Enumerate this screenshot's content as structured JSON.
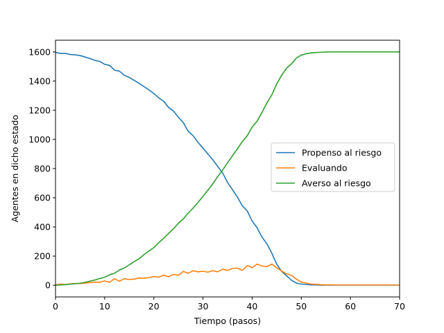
{
  "chart_data": {
    "type": "line",
    "title": "",
    "xlabel": "Tiempo (pasos)",
    "ylabel": "Agentes en dicho estado",
    "xlim": [
      0,
      70
    ],
    "ylim": [
      -80,
      1680
    ],
    "xticks": [
      0,
      10,
      20,
      30,
      40,
      50,
      60,
      70
    ],
    "yticks": [
      0,
      200,
      400,
      600,
      800,
      1000,
      1200,
      1400,
      1600
    ],
    "grid": false,
    "legend_position": "center-right",
    "x": [
      0,
      1,
      2,
      3,
      4,
      5,
      6,
      7,
      8,
      9,
      10,
      11,
      12,
      13,
      14,
      15,
      16,
      17,
      18,
      19,
      20,
      21,
      22,
      23,
      24,
      25,
      26,
      27,
      28,
      29,
      30,
      31,
      32,
      33,
      34,
      35,
      36,
      37,
      38,
      39,
      40,
      41,
      42,
      43,
      44,
      45,
      46,
      47,
      48,
      49,
      50,
      51,
      52,
      53,
      54,
      55,
      56,
      57,
      58,
      59,
      60,
      61,
      62,
      63,
      64,
      65,
      66,
      67,
      68,
      69,
      70
    ],
    "series": [
      {
        "name": "Propenso al riesgo",
        "color": "#1f77b4",
        "values": [
          1596,
          1590,
          1590,
          1582,
          1580,
          1575,
          1565,
          1555,
          1542,
          1535,
          1515,
          1508,
          1475,
          1468,
          1440,
          1425,
          1405,
          1385,
          1362,
          1340,
          1315,
          1285,
          1262,
          1220,
          1195,
          1152,
          1115,
          1055,
          1025,
          980,
          940,
          900,
          860,
          815,
          770,
          705,
          655,
          605,
          545,
          510,
          440,
          395,
          330,
          285,
          220,
          145,
          95,
          65,
          35,
          15,
          8,
          5,
          3,
          2,
          1,
          1,
          1,
          1,
          1,
          1,
          1,
          1,
          1,
          1,
          1,
          1,
          1,
          1,
          1,
          1,
          1
        ]
      },
      {
        "name": "Evaluando",
        "color": "#ff7f0e",
        "values": [
          2,
          8,
          5,
          10,
          12,
          12,
          15,
          18,
          22,
          20,
          30,
          20,
          45,
          28,
          45,
          40,
          42,
          50,
          48,
          52,
          60,
          55,
          70,
          58,
          75,
          68,
          95,
          82,
          100,
          92,
          96,
          90,
          100,
          92,
          110,
          102,
          115,
          118,
          102,
          135,
          120,
          145,
          132,
          128,
          145,
          120,
          98,
          78,
          68,
          42,
          22,
          15,
          8,
          6,
          4,
          3,
          3,
          2,
          2,
          2,
          2,
          2,
          2,
          2,
          2,
          2,
          2,
          2,
          2,
          2,
          2
        ]
      },
      {
        "name": "Averso al riesgo",
        "color": "#2ca02c",
        "values": [
          0,
          2,
          4,
          8,
          10,
          14,
          20,
          28,
          36,
          46,
          55,
          72,
          82,
          105,
          118,
          140,
          162,
          182,
          210,
          235,
          258,
          292,
          322,
          355,
          388,
          425,
          455,
          495,
          530,
          568,
          610,
          652,
          695,
          745,
          790,
          840,
          888,
          935,
          985,
          1025,
          1085,
          1125,
          1185,
          1250,
          1305,
          1380,
          1440,
          1488,
          1518,
          1558,
          1578,
          1588,
          1593,
          1596,
          1598,
          1599,
          1600,
          1600,
          1600,
          1600,
          1600,
          1600,
          1600,
          1600,
          1600,
          1600,
          1600,
          1600,
          1600,
          1600,
          1600
        ]
      }
    ]
  }
}
